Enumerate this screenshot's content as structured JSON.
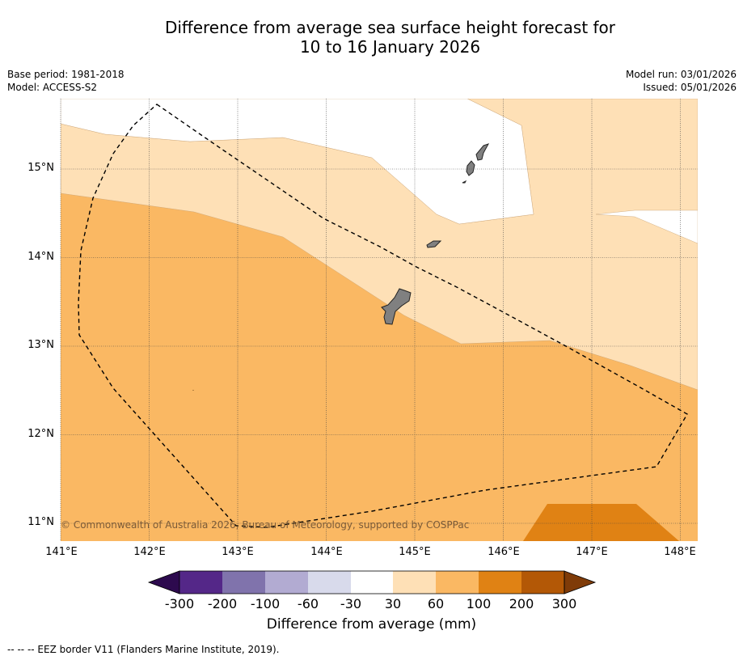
{
  "title_line1": "Difference from average sea surface height forecast for",
  "title_line2": "10 to 16 January 2026",
  "base_period": "Base period: 1981-2018",
  "model": "Model: ACCESS-S2",
  "model_run": "Model run: 03/01/2026",
  "issued": "Issued: 05/01/2026",
  "latitudes": [
    "15°N",
    "14°N",
    "13°N",
    "12°N",
    "11°N"
  ],
  "longitudes": [
    "141°E",
    "142°E",
    "143°E",
    "144°E",
    "145°E",
    "146°E",
    "147°E",
    "148°E"
  ],
  "copyright": "© Commonwealth of Australia 2026, Bureau of Meteorology, supported by COSPPac",
  "colorbar": {
    "title": "Difference from average (mm)",
    "ticks": [
      "-300",
      "-200",
      "-100",
      "-60",
      "-30",
      "30",
      "60",
      "100",
      "200",
      "300"
    ],
    "colors": {
      "lt_-300": "#2d0a4e",
      "-300_-200": "#542788",
      "-200_-100": "#8073ac",
      "-100_-60": "#b2abd2",
      "-60_-30": "#d8daeb",
      "-30_30": "#ffffff",
      "30_60": "#fee0b6",
      "60_100": "#fab863",
      "100_200": "#e08214",
      "200_300": "#b35806",
      "gt_300": "#7f3b08"
    }
  },
  "footnote": "--  --  -- EEZ border V11 (Flanders Marine Institute, 2019)."
}
